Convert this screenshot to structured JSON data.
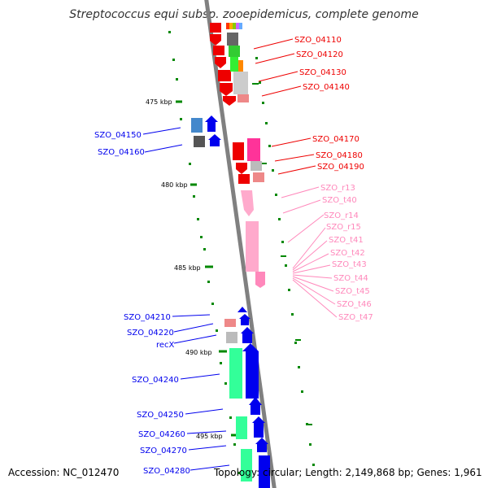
{
  "title": "Streptococcus equi subsp. zooepidemicus, complete genome",
  "footer": {
    "accession": "Accession: NC_012470",
    "topology": "Topology: circular; Length: 2,149,868 bp; Genes: 1,961"
  },
  "ticks": [
    "475 kbp",
    "480 kbp",
    "485 kbp",
    "490 kbp",
    "495 kbp"
  ],
  "labels_red": [
    "SZO_04110",
    "SZO_04120",
    "SZO_04130",
    "SZO_04140",
    "SZO_04170",
    "SZO_04180",
    "SZO_04190"
  ],
  "labels_pink": [
    "SZO_r13",
    "SZO_t40",
    "SZO_r14",
    "SZO_r15",
    "SZO_t41",
    "SZO_t42",
    "SZO_t43",
    "SZO_t44",
    "SZO_t45",
    "SZO_t46",
    "SZO_t47"
  ],
  "labels_blue": [
    "SZO_04150",
    "SZO_04160",
    "SZO_04210",
    "SZO_04220",
    "recX",
    "SZO_04240",
    "SZO_04250",
    "SZO_04260",
    "SZO_04270",
    "SZO_04280"
  ],
  "colors": {
    "red": "#ee0000",
    "pink": "#ff88bb",
    "blue": "#0000ee",
    "green": "#33ff99",
    "grey": "#888888",
    "tick": "#008800"
  }
}
